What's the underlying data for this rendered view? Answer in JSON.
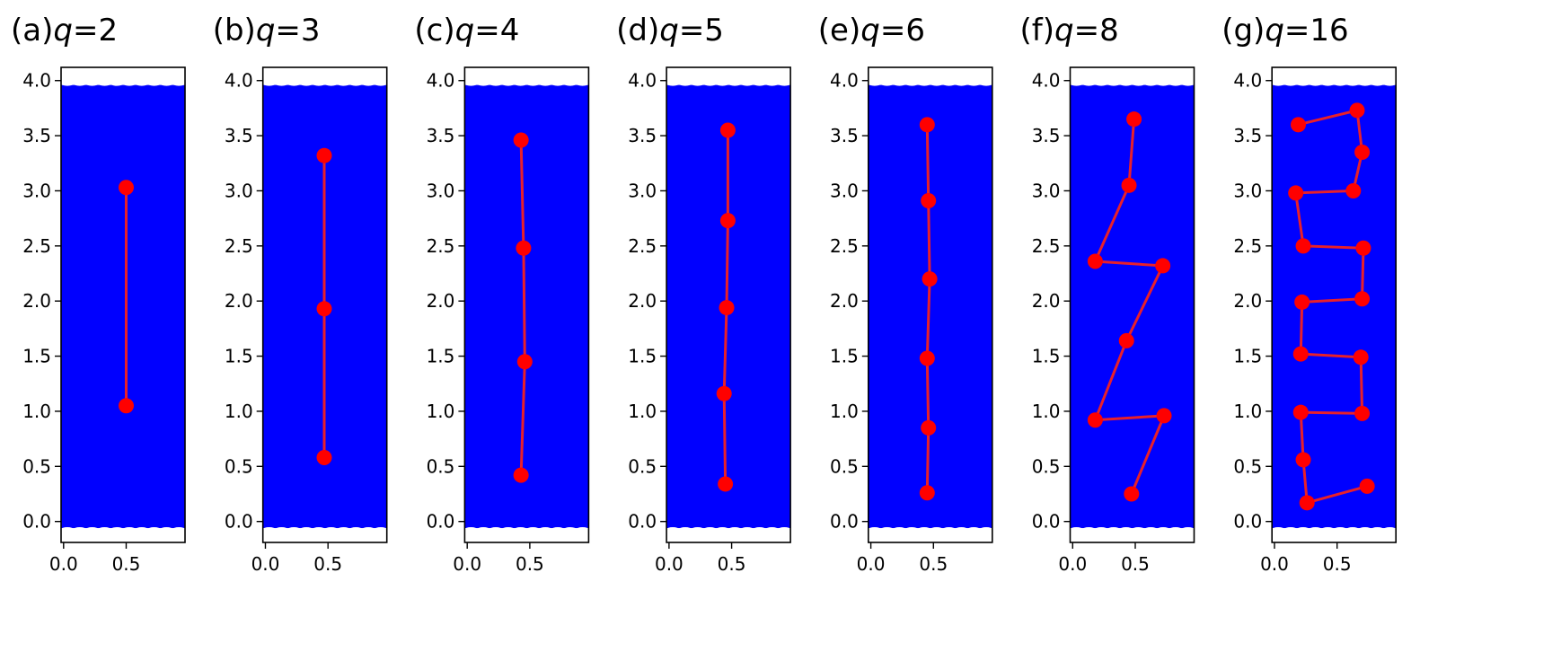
{
  "chart_data": [
    {
      "type": "line",
      "label": "(a)",
      "q": "2",
      "xlim": [
        -0.02,
        0.97
      ],
      "ylim": [
        -0.19,
        4.12
      ],
      "xticks": [
        "0.0",
        "0.5"
      ],
      "yticks": [
        "0.0",
        "0.5",
        "1.0",
        "1.5",
        "2.0",
        "2.5",
        "3.0",
        "3.5",
        "4.0"
      ],
      "points": [
        [
          0.5,
          3.03
        ],
        [
          0.5,
          1.05
        ]
      ]
    },
    {
      "type": "line",
      "label": "(b)",
      "q": "3",
      "xlim": [
        -0.02,
        0.97
      ],
      "ylim": [
        -0.19,
        4.12
      ],
      "xticks": [
        "0.0",
        "0.5"
      ],
      "yticks": [
        "0.0",
        "0.5",
        "1.0",
        "1.5",
        "2.0",
        "2.5",
        "3.0",
        "3.5",
        "4.0"
      ],
      "points": [
        [
          0.47,
          3.32
        ],
        [
          0.47,
          1.93
        ],
        [
          0.47,
          0.58
        ]
      ]
    },
    {
      "type": "line",
      "label": "(c)",
      "q": "4",
      "xlim": [
        -0.02,
        0.97
      ],
      "ylim": [
        -0.19,
        4.12
      ],
      "xticks": [
        "0.0",
        "0.5"
      ],
      "yticks": [
        "0.0",
        "0.5",
        "1.0",
        "1.5",
        "2.0",
        "2.5",
        "3.0",
        "3.5",
        "4.0"
      ],
      "points": [
        [
          0.43,
          3.46
        ],
        [
          0.45,
          2.48
        ],
        [
          0.46,
          1.45
        ],
        [
          0.43,
          0.42
        ]
      ]
    },
    {
      "type": "line",
      "label": "(d)",
      "q": "5",
      "xlim": [
        -0.02,
        0.97
      ],
      "ylim": [
        -0.19,
        4.12
      ],
      "xticks": [
        "0.0",
        "0.5"
      ],
      "yticks": [
        "0.0",
        "0.5",
        "1.0",
        "1.5",
        "2.0",
        "2.5",
        "3.0",
        "3.5",
        "4.0"
      ],
      "points": [
        [
          0.47,
          3.55
        ],
        [
          0.47,
          2.73
        ],
        [
          0.46,
          1.94
        ],
        [
          0.44,
          1.16
        ],
        [
          0.45,
          0.34
        ]
      ]
    },
    {
      "type": "line",
      "label": "(e)",
      "q": "6",
      "xlim": [
        -0.02,
        0.97
      ],
      "ylim": [
        -0.19,
        4.12
      ],
      "xticks": [
        "0.0",
        "0.5"
      ],
      "yticks": [
        "0.0",
        "0.5",
        "1.0",
        "1.5",
        "2.0",
        "2.5",
        "3.0",
        "3.5",
        "4.0"
      ],
      "points": [
        [
          0.45,
          3.6
        ],
        [
          0.46,
          2.91
        ],
        [
          0.47,
          2.2
        ],
        [
          0.45,
          1.48
        ],
        [
          0.46,
          0.85
        ],
        [
          0.45,
          0.26
        ]
      ]
    },
    {
      "type": "line",
      "label": "(f)",
      "q": "8",
      "xlim": [
        -0.02,
        0.97
      ],
      "ylim": [
        -0.19,
        4.12
      ],
      "xticks": [
        "0.0",
        "0.5"
      ],
      "yticks": [
        "0.0",
        "0.5",
        "1.0",
        "1.5",
        "2.0",
        "2.5",
        "3.0",
        "3.5",
        "4.0"
      ],
      "points": [
        [
          0.49,
          3.65
        ],
        [
          0.45,
          3.05
        ],
        [
          0.18,
          2.36
        ],
        [
          0.72,
          2.32
        ],
        [
          0.43,
          1.64
        ],
        [
          0.18,
          0.92
        ],
        [
          0.73,
          0.96
        ],
        [
          0.47,
          0.25
        ]
      ]
    },
    {
      "type": "line",
      "label": "(g)",
      "q": "16",
      "xlim": [
        -0.02,
        0.97
      ],
      "ylim": [
        -0.19,
        4.12
      ],
      "xticks": [
        "0.0",
        "0.5"
      ],
      "yticks": [
        "0.0",
        "0.5",
        "1.0",
        "1.5",
        "2.0",
        "2.5",
        "3.0",
        "3.5",
        "4.0"
      ],
      "points": [
        [
          0.19,
          3.6
        ],
        [
          0.66,
          3.73
        ],
        [
          0.7,
          3.35
        ],
        [
          0.63,
          3.0
        ],
        [
          0.17,
          2.98
        ],
        [
          0.23,
          2.5
        ],
        [
          0.71,
          2.48
        ],
        [
          0.7,
          2.02
        ],
        [
          0.22,
          1.99
        ],
        [
          0.21,
          1.52
        ],
        [
          0.69,
          1.49
        ],
        [
          0.7,
          0.98
        ],
        [
          0.21,
          0.99
        ],
        [
          0.23,
          0.56
        ],
        [
          0.26,
          0.17
        ],
        [
          0.74,
          0.32
        ]
      ]
    }
  ],
  "fill_range": [
    -0.06,
    3.96
  ],
  "colors": {
    "fill": "#0000ff",
    "marker": "#ff0000",
    "line": "#e8202a"
  }
}
